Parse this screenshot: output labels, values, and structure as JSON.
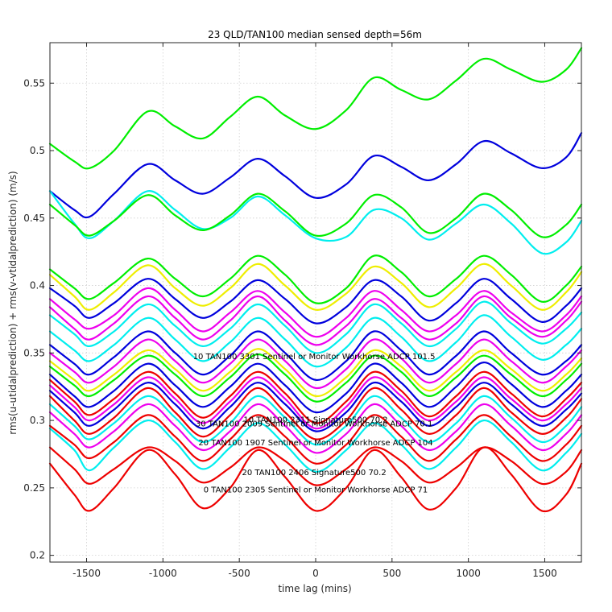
{
  "chart_data": {
    "type": "line",
    "title": "23 QLD/TAN100 median sensed depth=56m",
    "xlabel": "time lag (mins)",
    "ylabel": "rms(u-utidalprediction) + rms(v-vtidalprediction) (m/s)",
    "xlim": [
      -1740,
      1740
    ],
    "ylim": [
      0.195,
      0.58
    ],
    "xticks": [
      -1500,
      -1000,
      -500,
      0,
      500,
      1000,
      1500
    ],
    "xtick_labels": [
      "-1500",
      "-1000",
      "-500",
      "0",
      "500",
      "1000",
      "1500"
    ],
    "yticks": [
      0.2,
      0.25,
      0.3,
      0.35,
      0.4,
      0.45,
      0.5,
      0.55
    ],
    "ytick_labels": [
      "0.2",
      "0.25",
      "0.3",
      "0.35",
      "0.4",
      "0.45",
      "0.5",
      "0.55"
    ],
    "grid": true,
    "legend": "none",
    "x": [
      -1740,
      -1580,
      -1480,
      -1320,
      -1100,
      -920,
      -740,
      -560,
      -380,
      -200,
      0,
      200,
      380,
      560,
      740,
      920,
      1100,
      1280,
      1480,
      1640,
      1740
    ],
    "series": [
      {
        "color": "#00ee00",
        "values": [
          0.505,
          0.492,
          0.487,
          0.5,
          0.529,
          0.518,
          0.509,
          0.525,
          0.54,
          0.526,
          0.516,
          0.53,
          0.554,
          0.545,
          0.538,
          0.552,
          0.568,
          0.56,
          0.551,
          0.56,
          0.576
        ]
      },
      {
        "color": "#0000dd",
        "values": [
          0.47,
          0.456,
          0.451,
          0.468,
          0.49,
          0.478,
          0.468,
          0.48,
          0.494,
          0.481,
          0.465,
          0.475,
          0.496,
          0.488,
          0.478,
          0.49,
          0.507,
          0.498,
          0.487,
          0.495,
          0.513
        ]
      },
      {
        "color": "#00eeee",
        "values": [
          0.47,
          0.446,
          0.435,
          0.448,
          0.47,
          0.456,
          0.442,
          0.45,
          0.466,
          0.452,
          0.435,
          0.436,
          0.456,
          0.45,
          0.434,
          0.446,
          0.46,
          0.446,
          0.424,
          0.432,
          0.448
        ]
      },
      {
        "color": "#00ee00",
        "values": [
          0.46,
          0.445,
          0.437,
          0.448,
          0.467,
          0.452,
          0.441,
          0.452,
          0.468,
          0.455,
          0.437,
          0.446,
          0.467,
          0.458,
          0.439,
          0.45,
          0.468,
          0.456,
          0.436,
          0.445,
          0.46
        ]
      },
      {
        "color": "#00ee00",
        "values": [
          0.412,
          0.398,
          0.39,
          0.402,
          0.42,
          0.405,
          0.392,
          0.405,
          0.422,
          0.408,
          0.387,
          0.398,
          0.422,
          0.41,
          0.392,
          0.405,
          0.422,
          0.408,
          0.388,
          0.4,
          0.414
        ]
      },
      {
        "color": "#eeee00",
        "values": [
          0.408,
          0.392,
          0.382,
          0.395,
          0.415,
          0.398,
          0.385,
          0.398,
          0.416,
          0.4,
          0.382,
          0.394,
          0.414,
          0.402,
          0.384,
          0.398,
          0.416,
          0.4,
          0.382,
          0.395,
          0.41
        ]
      },
      {
        "color": "#0000dd",
        "values": [
          0.398,
          0.385,
          0.376,
          0.387,
          0.405,
          0.39,
          0.376,
          0.388,
          0.404,
          0.39,
          0.372,
          0.384,
          0.404,
          0.392,
          0.374,
          0.387,
          0.405,
          0.39,
          0.373,
          0.385,
          0.398
        ]
      },
      {
        "color": "#ee00ee",
        "values": [
          0.39,
          0.375,
          0.368,
          0.378,
          0.398,
          0.382,
          0.366,
          0.38,
          0.396,
          0.38,
          0.362,
          0.376,
          0.396,
          0.382,
          0.366,
          0.378,
          0.396,
          0.38,
          0.366,
          0.378,
          0.392
        ]
      },
      {
        "color": "#00eeee",
        "values": [
          0.378,
          0.364,
          0.355,
          0.366,
          0.386,
          0.37,
          0.355,
          0.368,
          0.386,
          0.37,
          0.35,
          0.364,
          0.386,
          0.372,
          0.355,
          0.368,
          0.388,
          0.372,
          0.357,
          0.368,
          0.38
        ]
      },
      {
        "color": "#ee00ee",
        "values": [
          0.384,
          0.368,
          0.36,
          0.372,
          0.392,
          0.376,
          0.36,
          0.374,
          0.392,
          0.374,
          0.356,
          0.37,
          0.39,
          0.376,
          0.36,
          0.372,
          0.392,
          0.376,
          0.362,
          0.374,
          0.388
        ]
      },
      {
        "color": "#00eeee",
        "values": [
          0.366,
          0.352,
          0.344,
          0.356,
          0.376,
          0.36,
          0.344,
          0.358,
          0.376,
          0.36,
          0.34,
          0.354,
          0.376,
          0.362,
          0.344,
          0.358,
          0.378,
          0.362,
          0.345,
          0.356,
          0.368
        ]
      },
      {
        "color": "#0000dd",
        "values": [
          0.356,
          0.342,
          0.334,
          0.347,
          0.366,
          0.35,
          0.334,
          0.348,
          0.366,
          0.35,
          0.33,
          0.344,
          0.366,
          0.352,
          0.334,
          0.348,
          0.366,
          0.35,
          0.334,
          0.344,
          0.356
        ]
      },
      {
        "color": "#ee00ee",
        "values": [
          0.35,
          0.336,
          0.328,
          0.34,
          0.36,
          0.344,
          0.328,
          0.342,
          0.36,
          0.344,
          0.324,
          0.338,
          0.36,
          0.346,
          0.328,
          0.342,
          0.36,
          0.344,
          0.328,
          0.34,
          0.352
        ]
      },
      {
        "color": "#eeee00",
        "values": [
          0.344,
          0.33,
          0.322,
          0.334,
          0.352,
          0.338,
          0.322,
          0.336,
          0.353,
          0.338,
          0.318,
          0.332,
          0.352,
          0.34,
          0.322,
          0.336,
          0.352,
          0.338,
          0.322,
          0.334,
          0.346
        ]
      },
      {
        "color": "#00ee00",
        "values": [
          0.34,
          0.326,
          0.318,
          0.33,
          0.348,
          0.334,
          0.318,
          0.332,
          0.349,
          0.334,
          0.314,
          0.328,
          0.348,
          0.336,
          0.318,
          0.332,
          0.348,
          0.334,
          0.318,
          0.33,
          0.342
        ]
      },
      {
        "color": "#0000dd",
        "values": [
          0.334,
          0.318,
          0.31,
          0.322,
          0.342,
          0.326,
          0.31,
          0.325,
          0.342,
          0.326,
          0.306,
          0.32,
          0.342,
          0.328,
          0.31,
          0.325,
          0.343,
          0.327,
          0.31,
          0.322,
          0.334
        ]
      },
      {
        "color": "#ee0000",
        "values": [
          0.33,
          0.314,
          0.304,
          0.316,
          0.336,
          0.32,
          0.302,
          0.318,
          0.336,
          0.32,
          0.298,
          0.314,
          0.336,
          0.322,
          0.303,
          0.318,
          0.336,
          0.32,
          0.303,
          0.316,
          0.328
        ]
      },
      {
        "color": "#ee00ee",
        "values": [
          0.326,
          0.31,
          0.3,
          0.312,
          0.332,
          0.316,
          0.298,
          0.314,
          0.332,
          0.316,
          0.294,
          0.31,
          0.332,
          0.318,
          0.3,
          0.314,
          0.332,
          0.316,
          0.3,
          0.312,
          0.324
        ]
      },
      {
        "color": "#0000dd",
        "values": [
          0.322,
          0.306,
          0.296,
          0.308,
          0.328,
          0.312,
          0.294,
          0.31,
          0.328,
          0.312,
          0.292,
          0.306,
          0.328,
          0.314,
          0.296,
          0.31,
          0.328,
          0.312,
          0.296,
          0.308,
          0.32
        ]
      },
      {
        "color": "#ee0000",
        "values": [
          0.318,
          0.3,
          0.29,
          0.302,
          0.324,
          0.306,
          0.288,
          0.304,
          0.324,
          0.306,
          0.286,
          0.3,
          0.324,
          0.308,
          0.29,
          0.304,
          0.324,
          0.306,
          0.29,
          0.302,
          0.316
        ]
      },
      {
        "color": "#00eeee",
        "values": [
          0.312,
          0.296,
          0.286,
          0.298,
          0.318,
          0.302,
          0.284,
          0.298,
          0.318,
          0.302,
          0.282,
          0.296,
          0.318,
          0.302,
          0.284,
          0.298,
          0.318,
          0.302,
          0.284,
          0.296,
          0.31
        ]
      },
      {
        "color": "#ee00ee",
        "values": [
          0.306,
          0.29,
          0.28,
          0.292,
          0.312,
          0.296,
          0.278,
          0.292,
          0.312,
          0.296,
          0.276,
          0.29,
          0.312,
          0.296,
          0.278,
          0.292,
          0.312,
          0.296,
          0.278,
          0.29,
          0.304
        ]
      },
      {
        "color": "#ee0000",
        "values": [
          0.296,
          0.282,
          0.272,
          0.284,
          0.304,
          0.288,
          0.27,
          0.286,
          0.304,
          0.288,
          0.268,
          0.282,
          0.304,
          0.288,
          0.27,
          0.286,
          0.304,
          0.288,
          0.27,
          0.282,
          0.296
        ]
      },
      {
        "color": "#00eeee",
        "values": [
          0.294,
          0.278,
          0.263,
          0.28,
          0.3,
          0.284,
          0.264,
          0.28,
          0.298,
          0.282,
          0.262,
          0.278,
          0.298,
          0.282,
          0.264,
          0.28,
          0.3,
          0.284,
          0.263,
          0.276,
          0.29
        ]
      },
      {
        "color": "#ee0000",
        "values": [
          0.28,
          0.264,
          0.253,
          0.264,
          0.28,
          0.27,
          0.254,
          0.265,
          0.28,
          0.27,
          0.252,
          0.264,
          0.28,
          0.27,
          0.254,
          0.265,
          0.28,
          0.27,
          0.253,
          0.262,
          0.278
        ]
      },
      {
        "color": "#ee0000",
        "values": [
          0.268,
          0.245,
          0.233,
          0.25,
          0.278,
          0.26,
          0.235,
          0.25,
          0.278,
          0.258,
          0.233,
          0.25,
          0.278,
          0.258,
          0.234,
          0.25,
          0.28,
          0.26,
          0.233,
          0.245,
          0.268
        ]
      }
    ],
    "annotations": [
      {
        "text": "10 TAN100 3301 Sentinel or Monitor Workhorse ADCP 101.5",
        "x": -10,
        "y": 0.3455
      },
      {
        "text": "10 TAN100 2311 Signature500 70.2",
        "x": 0,
        "y": 0.2985
      },
      {
        "text": "30 TAN100 2009 Sentinel or Monitor Workhorse ADCP 70.1",
        "x": -10,
        "y": 0.2955
      },
      {
        "text": "20 TAN100 1907 Sentinel or Monitor Workhorse ADCP 104",
        "x": 0,
        "y": 0.2815
      },
      {
        "text": "20 TAN100 2406 Signature500 70.2",
        "x": -10,
        "y": 0.2595
      },
      {
        "text": "0 TAN100 2305 Sentinel or Monitor Workhorse ADCP 71",
        "x": 0,
        "y": 0.2465
      }
    ]
  }
}
